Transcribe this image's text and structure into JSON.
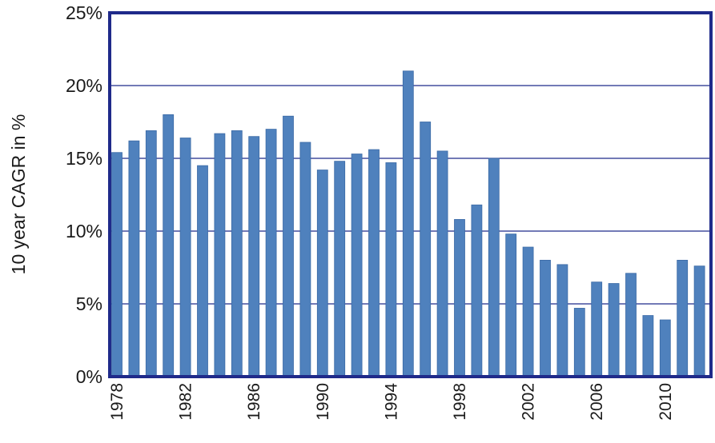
{
  "chart_data": {
    "type": "bar",
    "ylabel": "10 year CAGR in %",
    "ylim": [
      0,
      25
    ],
    "yticks": [
      "0%",
      "5%",
      "10%",
      "15%",
      "20%",
      "25%"
    ],
    "xtick_labels": [
      "1978",
      "1982",
      "1986",
      "1990",
      "1994",
      "1998",
      "2002",
      "2006",
      "2010"
    ],
    "grid": "horizontal",
    "bar_color": "#4f81bd",
    "frame_color": "#1f2a8a",
    "categories": [
      "1978",
      "1979",
      "1980",
      "1981",
      "1982",
      "1983",
      "1984",
      "1985",
      "1986",
      "1987",
      "1988",
      "1989",
      "1990",
      "1991",
      "1992",
      "1993",
      "1994",
      "1995",
      "1996",
      "1997",
      "1998",
      "1999",
      "2000",
      "2001",
      "2002",
      "2003",
      "2004",
      "2005",
      "2006",
      "2007",
      "2008",
      "2009",
      "2010",
      "2011",
      "2012"
    ],
    "values": [
      15.4,
      16.2,
      16.9,
      18.0,
      16.4,
      14.5,
      16.7,
      16.9,
      16.5,
      17.0,
      17.9,
      16.1,
      14.2,
      14.8,
      15.3,
      15.6,
      14.7,
      21.0,
      17.5,
      15.5,
      10.8,
      11.8,
      15.0,
      9.8,
      8.9,
      8.0,
      7.7,
      4.7,
      6.5,
      6.4,
      7.1,
      4.2,
      3.9,
      8.0,
      7.6
    ]
  }
}
